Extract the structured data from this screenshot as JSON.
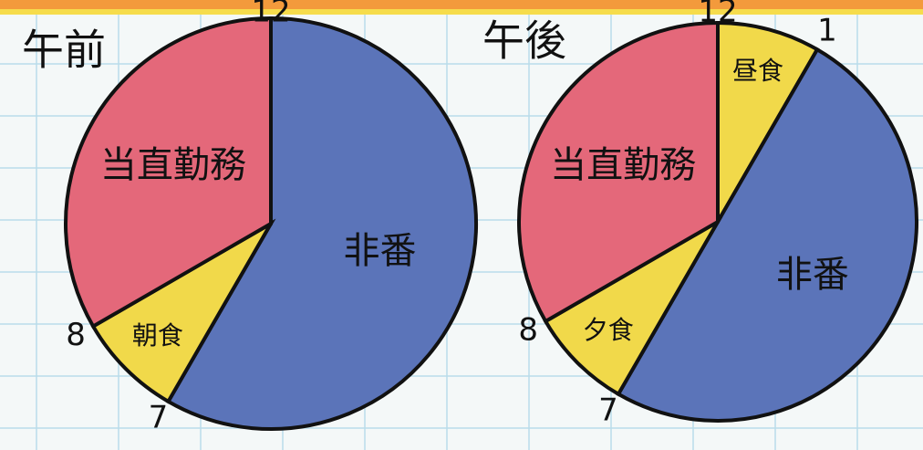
{
  "chart_data": [
    {
      "type": "pie",
      "title": "午前",
      "categories": [
        "非番",
        "朝食",
        "当直勤務"
      ],
      "values": [
        7,
        1,
        4
      ],
      "colors": [
        "#5b74b9",
        "#f1d94a",
        "#e4687a"
      ],
      "clock_ticks": [
        12,
        7,
        8
      ]
    },
    {
      "type": "pie",
      "title": "午後",
      "categories": [
        "昼食",
        "非番",
        "夕食",
        "当直勤務"
      ],
      "values": [
        1,
        6,
        1,
        4
      ],
      "colors": [
        "#f1d94a",
        "#5b74b9",
        "#f1d94a",
        "#e4687a"
      ],
      "clock_ticks": [
        12,
        1,
        7,
        8
      ]
    }
  ]
}
